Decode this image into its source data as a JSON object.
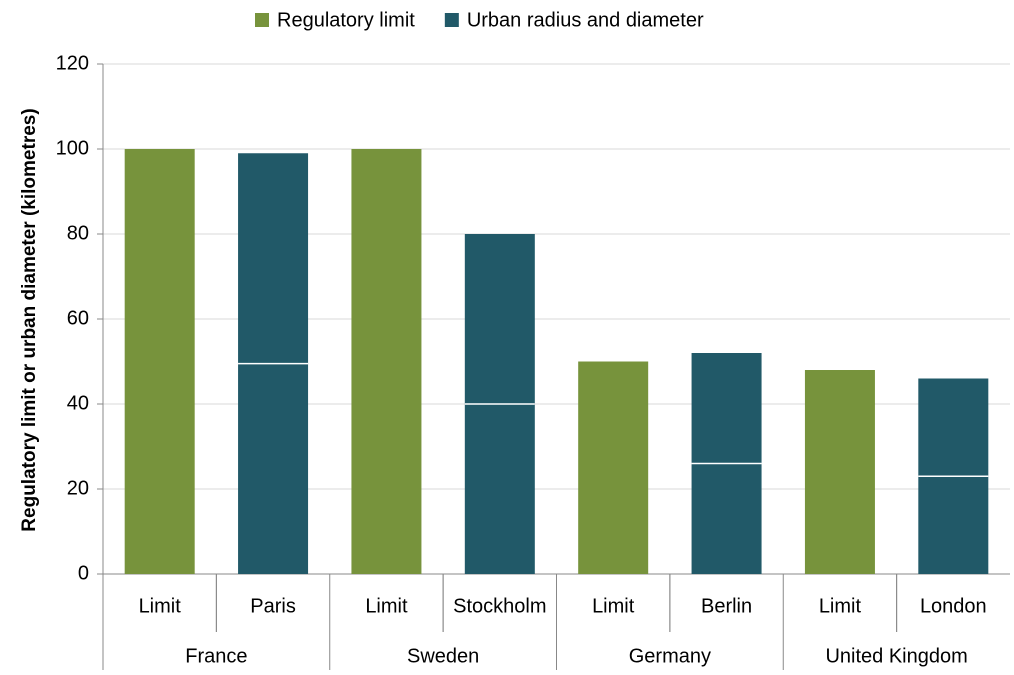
{
  "chart_data": {
    "type": "stacked_bar",
    "ylabel": "Regulatory limit or urban diameter (kilometres)",
    "categories": [
      "Limit",
      "Paris",
      "Limit",
      "Stockholm",
      "Limit",
      "Berlin",
      "Limit",
      "London"
    ],
    "groups": [
      "France",
      "Sweden",
      "Germany",
      "United Kingdom"
    ],
    "series": [
      {
        "name": "Regulatory limit",
        "color": "#77933c",
        "values": [
          100,
          null,
          100,
          null,
          50,
          null,
          48,
          null
        ]
      },
      {
        "name": "Urban radius and diameter",
        "color": "#215968",
        "values": [
          null,
          49.5,
          null,
          40,
          null,
          26,
          null,
          23
        ]
      },
      {
        "color": "#215968",
        "values": [
          null,
          49.5,
          null,
          40,
          null,
          26,
          null,
          23
        ]
      }
    ],
    "ylim": [
      0,
      120
    ],
    "yticks": [
      0,
      20,
      40,
      60,
      80,
      100,
      120
    ],
    "grid": true
  }
}
